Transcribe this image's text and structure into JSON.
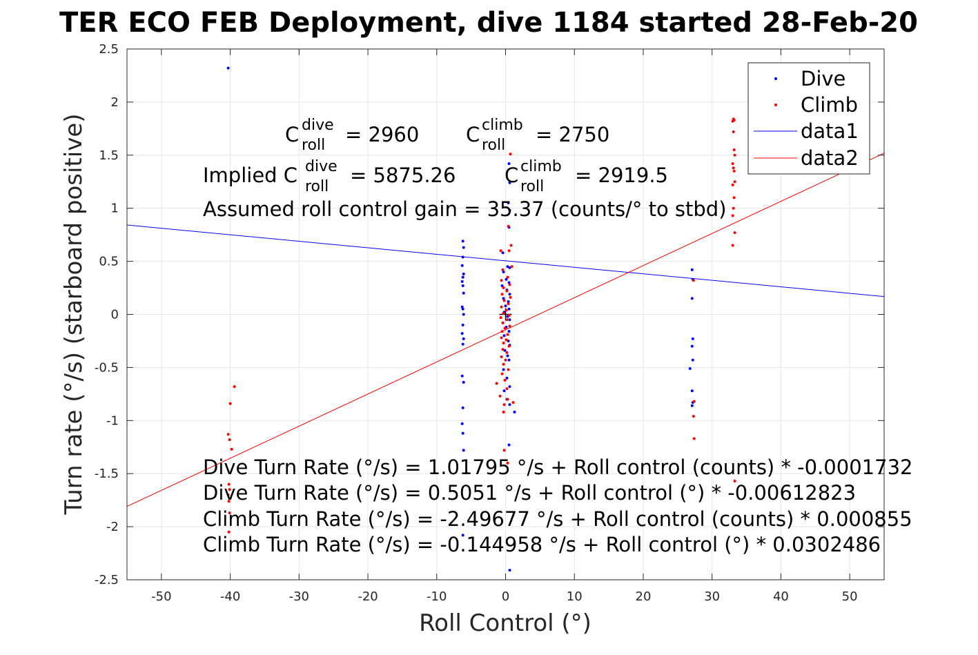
{
  "chart_data": {
    "type": "scatter",
    "title": "TER ECO FEB Deployment, dive 1184 started 28-Feb-20",
    "xlabel": "Roll Control (°)",
    "ylabel": "Turn rate (°/s) (starboard positive)",
    "xlim": [
      -55,
      55
    ],
    "ylim": [
      -2.5,
      2.5
    ],
    "x_ticks": [
      "-50",
      "-40",
      "-30",
      "-20",
      "-10",
      "0",
      "10",
      "20",
      "30",
      "40",
      "50"
    ],
    "y_ticks": [
      "2.5",
      "2",
      "1.5",
      "1",
      "0.5",
      "0",
      "-0.5",
      "-1",
      "-1.5",
      "-2",
      "-2.5"
    ],
    "grid": true,
    "legend_position": "top-right",
    "legend": [
      "Dive",
      "Climb",
      "data1",
      "data2"
    ],
    "annotations": {
      "c_dive_base": "C",
      "c_dive_sup": "dive",
      "c_dive_sub": "roll",
      "c_dive_val": "= 2960",
      "c_climb_base": "C",
      "c_climb_sup": "climb",
      "c_climb_sub": "roll",
      "c_climb_val": "= 2750",
      "implied_prefix": "Implied C",
      "implied_dive_sup": "dive",
      "implied_dive_sub": "roll",
      "implied_dive_val": "= 5875.26",
      "implied_climb_base": "C",
      "implied_climb_sup": "climb",
      "implied_climb_sub": "roll",
      "implied_climb_val": "= 2919.5",
      "gain": "Assumed roll control gain = 35.37 (counts/° to stbd)",
      "eq1": "Dive Turn Rate (°/s) = 1.01795 °/s + Roll control (counts) * -0.0001732",
      "eq2": "Dive Turn Rate (°/s) = 0.5051 °/s + Roll control (°) * -0.00612823",
      "eq3": "Climb Turn Rate (°/s) = -2.49677 °/s + Roll control (counts) * 0.000855",
      "eq4": "Climb Turn Rate (°/s) = -0.144958 °/s + Roll control (°) * 0.0302486"
    },
    "series": [
      {
        "name": "Dive",
        "marker": "dot",
        "color": "#0000ff",
        "points": [
          [
            -40.3,
            2.32
          ],
          [
            -6.2,
            0.69
          ],
          [
            -6.1,
            0.63
          ],
          [
            -6.2,
            0.54
          ],
          [
            -6.3,
            0.46
          ],
          [
            -6.1,
            0.38
          ],
          [
            -6.2,
            0.35
          ],
          [
            -6.3,
            0.31
          ],
          [
            -6.2,
            0.27
          ],
          [
            -6.1,
            0.2
          ],
          [
            -6.3,
            0.07
          ],
          [
            -6.2,
            0.05
          ],
          [
            -6.1,
            0.0
          ],
          [
            -6.2,
            -0.1
          ],
          [
            -6.3,
            -0.18
          ],
          [
            -6.1,
            -0.23
          ],
          [
            -6.2,
            -0.28
          ],
          [
            -6.3,
            -0.58
          ],
          [
            -6.1,
            -0.64
          ],
          [
            -6.2,
            -0.88
          ],
          [
            -6.3,
            -1.03
          ],
          [
            -6.2,
            -1.12
          ],
          [
            -6.1,
            -1.28
          ],
          [
            -6.2,
            -2.08
          ],
          [
            0.5,
            1.42
          ],
          [
            0.6,
            1.24
          ],
          [
            0.4,
            1.05
          ],
          [
            0.6,
            0.98
          ],
          [
            0.5,
            0.82
          ],
          [
            -0.4,
            0.58
          ],
          [
            0.3,
            0.45
          ],
          [
            0.6,
            0.44
          ],
          [
            -0.3,
            0.4
          ],
          [
            0.1,
            0.33
          ],
          [
            0.5,
            0.3
          ],
          [
            -0.5,
            0.27
          ],
          [
            0.2,
            0.23
          ],
          [
            0.6,
            0.19
          ],
          [
            -0.3,
            0.15
          ],
          [
            0.4,
            0.12
          ],
          [
            0.0,
            0.08
          ],
          [
            0.5,
            0.05
          ],
          [
            -0.2,
            0.02
          ],
          [
            0.3,
            -0.02
          ],
          [
            0.6,
            -0.05
          ],
          [
            -0.4,
            -0.08
          ],
          [
            0.1,
            -0.12
          ],
          [
            0.5,
            -0.16
          ],
          [
            -0.2,
            -0.2
          ],
          [
            0.4,
            -0.25
          ],
          [
            0.6,
            -0.29
          ],
          [
            -0.1,
            -0.34
          ],
          [
            0.3,
            -0.39
          ],
          [
            0.5,
            -0.43
          ],
          [
            -0.3,
            -0.52
          ],
          [
            0.2,
            -0.6
          ],
          [
            0.6,
            -0.68
          ],
          [
            -0.2,
            -0.72
          ],
          [
            0.2,
            -0.8
          ],
          [
            0.6,
            -0.85
          ],
          [
            1.3,
            -0.92
          ],
          [
            0.5,
            -1.23
          ],
          [
            0.6,
            -2.41
          ],
          [
            27.1,
            0.42
          ],
          [
            27.2,
            0.33
          ],
          [
            27.1,
            0.15
          ],
          [
            27.2,
            -0.23
          ],
          [
            27.1,
            -0.3
          ],
          [
            27.2,
            -0.43
          ],
          [
            26.8,
            -0.51
          ],
          [
            27.1,
            -0.72
          ],
          [
            27.2,
            -0.83
          ],
          [
            27.1,
            -0.86
          ]
        ]
      },
      {
        "name": "Climb",
        "marker": "dot",
        "color": "#ff0000",
        "points": [
          [
            -39.4,
            -0.68
          ],
          [
            -40.0,
            -0.84
          ],
          [
            -40.3,
            -1.13
          ],
          [
            -40.1,
            -1.18
          ],
          [
            -39.8,
            -1.27
          ],
          [
            -40.2,
            -1.6
          ],
          [
            -40.1,
            -1.65
          ],
          [
            -40.3,
            -1.7
          ],
          [
            -40.2,
            -1.76
          ],
          [
            -40.1,
            -1.87
          ],
          [
            -40.2,
            -2.05
          ],
          [
            0.7,
            1.51
          ],
          [
            0.4,
            0.83
          ],
          [
            0.8,
            0.65
          ],
          [
            0.5,
            0.6
          ],
          [
            -0.7,
            0.6
          ],
          [
            0.9,
            0.45
          ],
          [
            -0.4,
            0.42
          ],
          [
            0.3,
            0.35
          ],
          [
            -0.6,
            0.32
          ],
          [
            0.6,
            0.28
          ],
          [
            -0.3,
            0.25
          ],
          [
            0.2,
            0.22
          ],
          [
            -0.5,
            0.19
          ],
          [
            0.7,
            0.16
          ],
          [
            -0.2,
            0.13
          ],
          [
            0.4,
            0.1
          ],
          [
            -0.6,
            0.07
          ],
          [
            0.1,
            0.04
          ],
          [
            -0.3,
            0.01
          ],
          [
            0.5,
            -0.01
          ],
          [
            -0.7,
            -0.03
          ],
          [
            0.2,
            -0.05
          ],
          [
            -0.4,
            -0.08
          ],
          [
            0.6,
            -0.11
          ],
          [
            -0.1,
            -0.13
          ],
          [
            -0.5,
            -0.16
          ],
          [
            0.3,
            -0.19
          ],
          [
            -0.6,
            -0.22
          ],
          [
            0.1,
            -0.24
          ],
          [
            -0.3,
            -0.27
          ],
          [
            0.5,
            -0.3
          ],
          [
            -0.4,
            -0.33
          ],
          [
            0.2,
            -0.36
          ],
          [
            -0.6,
            -0.4
          ],
          [
            0.0,
            -0.43
          ],
          [
            -0.3,
            -0.47
          ],
          [
            0.4,
            -0.52
          ],
          [
            -0.5,
            -0.56
          ],
          [
            -0.1,
            -0.62
          ],
          [
            -1.3,
            -0.65
          ],
          [
            0.2,
            -0.7
          ],
          [
            -0.8,
            -0.77
          ],
          [
            0.3,
            -0.8
          ],
          [
            -0.2,
            -0.85
          ],
          [
            1.1,
            -0.83
          ],
          [
            -0.3,
            -0.92
          ],
          [
            -0.2,
            -1.28
          ],
          [
            0.3,
            -1.4
          ],
          [
            27.3,
            0.32
          ],
          [
            27.4,
            -0.82
          ],
          [
            27.3,
            -0.96
          ],
          [
            27.4,
            -1.17
          ],
          [
            33.1,
            1.84
          ],
          [
            33.2,
            1.83
          ],
          [
            33.0,
            1.82
          ],
          [
            33.1,
            1.72
          ],
          [
            33.2,
            1.55
          ],
          [
            33.3,
            1.5
          ],
          [
            33.0,
            1.42
          ],
          [
            33.1,
            1.38
          ],
          [
            33.2,
            1.35
          ],
          [
            33.3,
            1.25
          ],
          [
            33.0,
            1.22
          ],
          [
            33.2,
            1.1
          ],
          [
            33.1,
            1.0
          ],
          [
            33.0,
            0.93
          ],
          [
            33.3,
            0.77
          ],
          [
            33.0,
            0.65
          ],
          [
            33.3,
            -1.57
          ]
        ]
      },
      {
        "name": "data1",
        "type": "line",
        "color": "#0000ff",
        "x": [
          -55,
          55
        ],
        "y": [
          0.842,
          0.168
        ]
      },
      {
        "name": "data2",
        "type": "line",
        "color": "#ff0000",
        "x": [
          -55,
          55
        ],
        "y": [
          -1.809,
          1.519
        ]
      }
    ]
  }
}
